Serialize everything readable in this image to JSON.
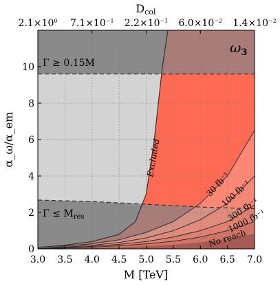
{
  "chart_data": {
    "type": "area",
    "panel_label": "ω",
    "panel_label_sub": "3",
    "xlabel": "M [TeV]",
    "ylabel": "α_ω/α_em",
    "top_xlabel": "D",
    "top_xlabel_sub": "col",
    "xlim": [
      3.0,
      7.0
    ],
    "ylim": [
      0,
      12
    ],
    "grid": true,
    "x_ticks": [
      {
        "value": 3.0,
        "label": "3.0"
      },
      {
        "value": 3.5,
        "label": "3.5"
      },
      {
        "value": 4.0,
        "label": "4.0"
      },
      {
        "value": 4.5,
        "label": "4.5"
      },
      {
        "value": 5.0,
        "label": "5.0"
      },
      {
        "value": 5.5,
        "label": "5.5"
      },
      {
        "value": 6.0,
        "label": "6.0"
      },
      {
        "value": 6.5,
        "label": "6.5"
      },
      {
        "value": 7.0,
        "label": "7.0"
      }
    ],
    "y_ticks": [
      {
        "value": 0,
        "label": "0"
      },
      {
        "value": 2,
        "label": "2"
      },
      {
        "value": 4,
        "label": "4"
      },
      {
        "value": 6,
        "label": "6"
      },
      {
        "value": 8,
        "label": "8"
      },
      {
        "value": 10,
        "label": "10"
      }
    ],
    "top_ticks": [
      {
        "mass": 3.0,
        "mantissa": "2.1×10",
        "exponent": "0"
      },
      {
        "mass": 4.0,
        "mantissa": "7.1×10",
        "exponent": "−1"
      },
      {
        "mass": 5.0,
        "mantissa": "2.2×10",
        "exponent": "−1"
      },
      {
        "mass": 6.0,
        "mantissa": "6.0×10",
        "exponent": "−2"
      },
      {
        "mass": 7.0,
        "mantissa": "1.4×10",
        "exponent": "−2"
      }
    ],
    "width_bounds": {
      "upper": {
        "y": 9.6,
        "label": "Γ ≥ 0.15M"
      },
      "lower": {
        "label": "Γ ≤ M",
        "label_sub": "res",
        "points": [
          [
            3.0,
            2.68
          ],
          [
            4.0,
            2.6
          ],
          [
            5.0,
            2.45
          ],
          [
            6.0,
            2.3
          ],
          [
            7.0,
            2.2
          ]
        ]
      }
    },
    "excluded": {
      "label": "Excluded",
      "boundary": [
        [
          3.0,
          0.08
        ],
        [
          3.5,
          0.2
        ],
        [
          4.0,
          0.4
        ],
        [
          4.5,
          0.8
        ],
        [
          4.8,
          1.5
        ],
        [
          5.0,
          3.0
        ],
        [
          5.15,
          6.0
        ],
        [
          5.3,
          10.0
        ],
        [
          5.4,
          12.0
        ]
      ]
    },
    "reach_series": [
      {
        "name": "30 fb⁻¹",
        "points": [
          [
            3.0,
            0.0
          ],
          [
            3.5,
            0.15
          ],
          [
            4.0,
            0.28
          ],
          [
            4.5,
            0.5
          ],
          [
            5.0,
            0.9
          ],
          [
            5.5,
            1.5
          ],
          [
            6.0,
            2.5
          ],
          [
            6.5,
            4.0
          ],
          [
            7.0,
            6.5
          ]
        ]
      },
      {
        "name": "100 fb⁻¹",
        "points": [
          [
            3.0,
            0.0
          ],
          [
            3.5,
            0.1
          ],
          [
            4.0,
            0.2
          ],
          [
            4.5,
            0.35
          ],
          [
            5.0,
            0.6
          ],
          [
            5.5,
            1.0
          ],
          [
            6.0,
            1.6
          ],
          [
            6.5,
            2.5
          ],
          [
            7.0,
            4.0
          ]
        ]
      },
      {
        "name": "300 fb⁻¹",
        "points": [
          [
            3.0,
            0.0
          ],
          [
            3.5,
            0.07
          ],
          [
            4.0,
            0.14
          ],
          [
            4.5,
            0.25
          ],
          [
            5.0,
            0.4
          ],
          [
            5.5,
            0.65
          ],
          [
            6.0,
            1.0
          ],
          [
            6.5,
            1.5
          ],
          [
            7.0,
            2.4
          ]
        ]
      },
      {
        "name": "1000 fb⁻¹",
        "points": [
          [
            3.0,
            0.0
          ],
          [
            3.5,
            0.05
          ],
          [
            4.0,
            0.1
          ],
          [
            4.5,
            0.17
          ],
          [
            5.0,
            0.27
          ],
          [
            5.5,
            0.42
          ],
          [
            6.0,
            0.65
          ],
          [
            6.5,
            1.0
          ],
          [
            7.0,
            1.5
          ]
        ]
      }
    ],
    "no_reach_label": "No reach",
    "colors": {
      "dark_gray": "#8a8a8a",
      "light_gray": "#d3d3d3",
      "brown": "#a87c78",
      "red": "#ff6a55",
      "reach_fills": [
        "#f6a08f",
        "#ee8677",
        "#dc7868",
        "#c46a60"
      ],
      "no_reach": "#8a4a48",
      "dark_line": "#303030"
    }
  }
}
